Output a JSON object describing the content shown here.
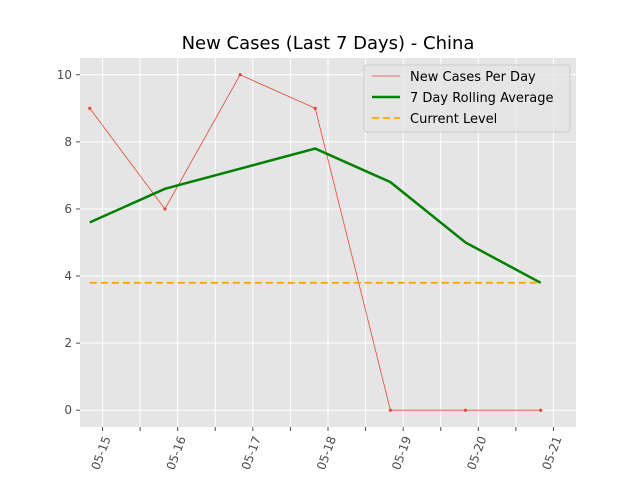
{
  "chart_data": {
    "type": "line",
    "title": "New Cases (Last 7 Days) - China",
    "xlabel": "",
    "ylabel": "",
    "x": [
      "05-15",
      "05-16",
      "05-17",
      "05-18",
      "05-19",
      "05-20",
      "05-21"
    ],
    "xlim_days": [
      -0.3,
      6.3
    ],
    "ylim": [
      -0.5,
      10.5
    ],
    "y_ticks": [
      0,
      2,
      4,
      6,
      8,
      10
    ],
    "grid": true,
    "legend": "top-right",
    "series": [
      {
        "name": "New Cases Per Day",
        "type": "line-markers",
        "color": "#e24a33",
        "values": [
          9,
          6,
          10,
          9,
          0,
          0,
          0
        ]
      },
      {
        "name": "7 Day Rolling Average",
        "type": "line",
        "color": "#008000",
        "values": [
          5.6,
          6.6,
          7.2,
          7.8,
          6.8,
          5.0,
          3.8
        ]
      },
      {
        "name": "Current Level",
        "type": "dashed",
        "color": "#ffa500",
        "values": [
          3.8,
          3.8,
          3.8,
          3.8,
          3.8,
          3.8,
          3.8
        ]
      }
    ]
  }
}
